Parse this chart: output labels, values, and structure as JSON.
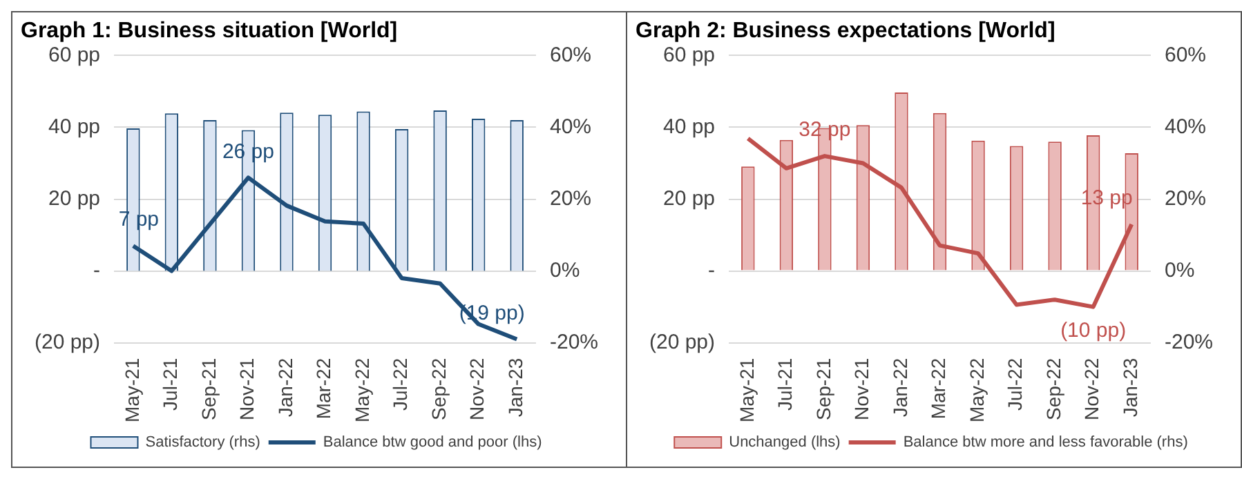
{
  "chart_data": [
    {
      "type": "bar",
      "title": "Graph 1: Business situation [World]",
      "categories": [
        "May-21",
        "Jul-21",
        "Sep-21",
        "Nov-21",
        "Jan-22",
        "Mar-22",
        "May-22",
        "Jul-22",
        "Sep-22",
        "Nov-22",
        "Jan-23"
      ],
      "series": [
        {
          "name": "Satisfactory (rhs)",
          "axis": "y2",
          "color": "#dbe5f3",
          "values": [
            39.7,
            43.9,
            42,
            39.2,
            44.1,
            43.5,
            44.4,
            39.5,
            44.7,
            42.4,
            42
          ]
        },
        {
          "name": "Balance btw good and poor (lhs)",
          "type": "line",
          "axis": "y",
          "color": "#1f4e79",
          "values": [
            7,
            0,
            13,
            26,
            18.2,
            13.8,
            13.2,
            -2,
            -3.5,
            -14.8,
            -19
          ],
          "value_labels": [
            "7 pp",
            null,
            null,
            "26 pp",
            null,
            null,
            null,
            null,
            null,
            null,
            "(19 pp)"
          ]
        }
      ],
      "ylim": [
        -20,
        60
      ],
      "yticks": [
        {
          "value": -20,
          "label": "(20 pp)"
        },
        {
          "value": 0,
          "label": "-"
        },
        {
          "value": 20,
          "label": "20 pp"
        },
        {
          "value": 40,
          "label": "40 pp"
        },
        {
          "value": 60,
          "label": "60 pp"
        }
      ],
      "y2lim": [
        -20,
        60
      ],
      "y2ticks": [
        {
          "value": -20,
          "label": "-20%"
        },
        {
          "value": 0,
          "label": "0%"
        },
        {
          "value": 20,
          "label": "20%"
        },
        {
          "value": 40,
          "label": "40%"
        },
        {
          "value": 60,
          "label": "60%"
        }
      ],
      "grid": "y",
      "legend": "bottom"
    },
    {
      "type": "bar",
      "title": "Graph 2: Business expectations [World]",
      "categories": [
        "May-21",
        "Jul-21",
        "Sep-21",
        "Nov-21",
        "Jan-22",
        "Mar-22",
        "May-22",
        "Jul-22",
        "Sep-22",
        "Nov-22",
        "Jan-23"
      ],
      "series": [
        {
          "name": "Unchanged (lhs)",
          "axis": "y",
          "color": "#eab9b8",
          "values": [
            29.1,
            36.5,
            39.8,
            40.6,
            49.7,
            44,
            36.3,
            34.8,
            36,
            37.8,
            32.8
          ]
        },
        {
          "name": "Balance btw more and less favorable (rhs)",
          "type": "line",
          "axis": "y2",
          "color": "#c0504d",
          "values": [
            36.9,
            28.6,
            32,
            30,
            23.2,
            7.1,
            4.9,
            -9.4,
            -8,
            -10,
            13
          ],
          "value_labels": [
            null,
            null,
            "32 pp",
            null,
            null,
            null,
            null,
            null,
            null,
            "(10 pp)",
            "13 pp"
          ]
        }
      ],
      "ylim": [
        -20,
        60
      ],
      "yticks": [
        {
          "value": -20,
          "label": "(20 pp)"
        },
        {
          "value": 0,
          "label": "-"
        },
        {
          "value": 20,
          "label": "20 pp"
        },
        {
          "value": 40,
          "label": "40 pp"
        },
        {
          "value": 60,
          "label": "60 pp"
        }
      ],
      "y2lim": [
        -20,
        60
      ],
      "y2ticks": [
        {
          "value": -20,
          "label": "-20%"
        },
        {
          "value": 0,
          "label": "0%"
        },
        {
          "value": 20,
          "label": "20%"
        },
        {
          "value": 40,
          "label": "40%"
        },
        {
          "value": 60,
          "label": "60%"
        }
      ],
      "grid": "y",
      "legend": "bottom"
    }
  ]
}
